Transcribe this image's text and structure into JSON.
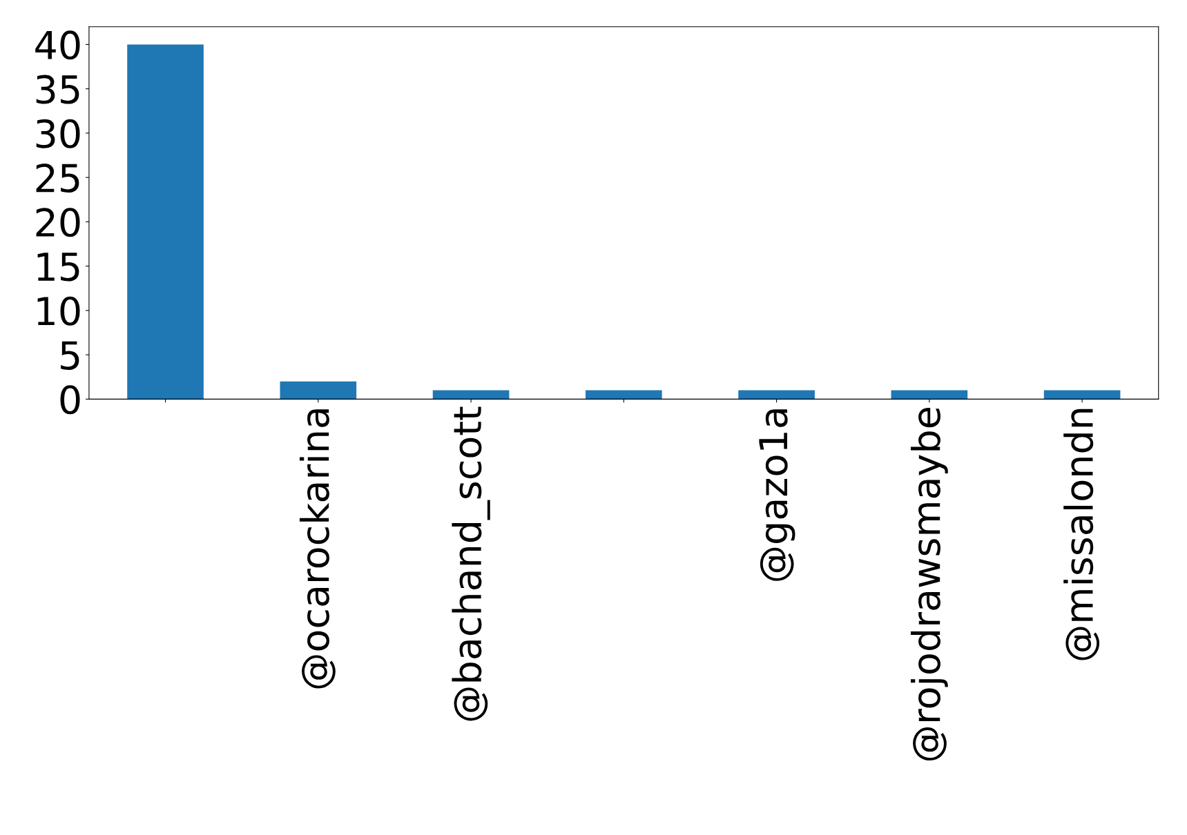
{
  "chart_data": {
    "type": "bar",
    "categories": [
      null,
      "@ocarockarina",
      "@bachand_scott",
      null,
      "@gazo1a",
      "@rojodrawsmaybe",
      "@missalondn"
    ],
    "values": [
      40,
      2,
      1,
      1,
      1,
      1,
      1
    ],
    "color": "#1f77b4",
    "ylim": [
      0,
      42
    ],
    "yticks": [
      0,
      5,
      10,
      15,
      20,
      25,
      30,
      35,
      40
    ],
    "grid": false,
    "legend": false
  }
}
